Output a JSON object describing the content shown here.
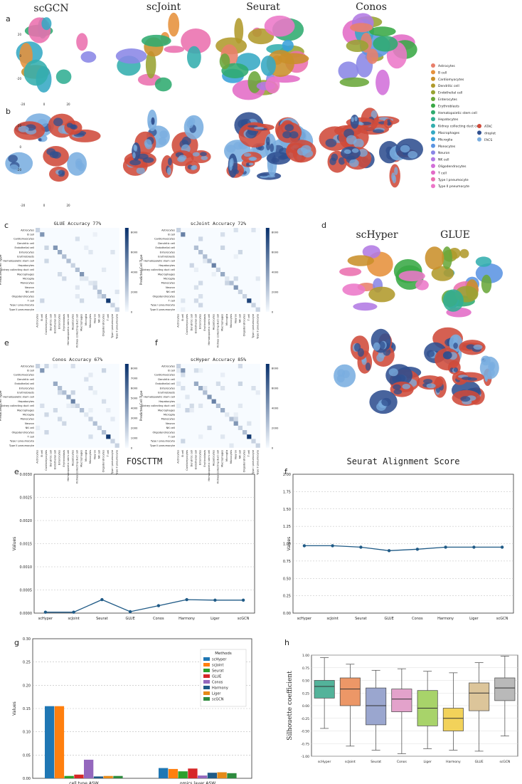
{
  "panel_letters": {
    "a": "a",
    "b": "b",
    "c": "c",
    "d": "d",
    "e": "e",
    "f": "f",
    "e2": "e",
    "f2": "f",
    "g": "g",
    "h": "h"
  },
  "row_titles": [
    "scGCN",
    "scJoint",
    "Seurat",
    "Conos"
  ],
  "d_titles": [
    "scHyper",
    "GLUE"
  ],
  "umap_ticks": {
    "y": [
      "20",
      "0",
      "-20"
    ],
    "x": [
      "-20",
      "0",
      "20"
    ]
  },
  "cell_types": [
    "Astrocytes",
    "B cell",
    "Cardiomyocytes",
    "Dendritic cell",
    "Endothelial cell",
    "Enterocytes",
    "Erythroblasts",
    "Hematopoietic stem cell",
    "Hepatocytes",
    "Kidney collecting duct cell",
    "Macrophages",
    "Microglia",
    "Monocytes",
    "Neuron",
    "NK cell",
    "Oligodendrocytes",
    "T cell",
    "Type I pneumocyte",
    "Type II pneumocyte"
  ],
  "cell_type_colors": [
    "#e87f6b",
    "#e6913b",
    "#c98f2a",
    "#b09a2b",
    "#98a332",
    "#6aa73a",
    "#39a845",
    "#2fab6f",
    "#31ae93",
    "#33aeae",
    "#35a9c4",
    "#39a0d9",
    "#5b94e2",
    "#8a86e6",
    "#b27ae4",
    "#d26fd9",
    "#e26bc6",
    "#ea6fae",
    "#ec77c8"
  ],
  "omics": [
    "ATAC",
    "droplet",
    "FACS"
  ],
  "omics_colors": [
    "#cf4a3a",
    "#2f4f8f",
    "#7aaee0"
  ],
  "confusion": [
    {
      "title": "GLUE Accuracy 77%",
      "ylabel": "Predicted Cell Type",
      "cbar_ticks": [
        "8000",
        "6000",
        "4000",
        "2000",
        "0"
      ]
    },
    {
      "title": "scJoint Accuracy 72%",
      "ylabel": "Predicted Cell Type",
      "cbar_ticks": [
        "8000",
        "6000",
        "4000",
        "2000",
        "0"
      ]
    },
    {
      "title": "Conos Accuracy 67%",
      "ylabel": "Predicted Cell Type",
      "cbar_ticks": [
        "8000",
        "7000",
        "6000",
        "5000",
        "4000",
        "3000",
        "2000",
        "1000",
        "0"
      ]
    },
    {
      "title": "scHyper Accuracy 85%",
      "ylabel": "Predicted Cell Type",
      "cbar_ticks": [
        "8000",
        "6000",
        "4000",
        "2000",
        "0"
      ]
    }
  ],
  "chart_data": [
    {
      "type": "line",
      "title": "FOSCTTM",
      "ylabel": "Values",
      "categories": [
        "scHyper",
        "scJoint",
        "Seurat",
        "GLUE",
        "Conos",
        "Harmony",
        "Liger",
        "scGCN"
      ],
      "values": [
        2e-05,
        2e-05,
        0.00029,
        3e-05,
        0.00016,
        0.00029,
        0.00028,
        0.00028
      ],
      "ylim": [
        0,
        0.003
      ],
      "yticks": [
        "0.0000",
        "0.0005",
        "0.0010",
        "0.0015",
        "0.0020",
        "0.0025",
        "0.0030"
      ],
      "color": "#1f5a86"
    },
    {
      "type": "line",
      "title": "Seurat Alignment Score",
      "ylabel": "Values",
      "categories": [
        "scHyper",
        "scJoint",
        "Seurat",
        "GLUE",
        "Conos",
        "Harmony",
        "Liger",
        "scGCN"
      ],
      "values": [
        0.97,
        0.97,
        0.95,
        0.9,
        0.92,
        0.95,
        0.95,
        0.95
      ],
      "ylim": [
        0,
        2.0
      ],
      "yticks": [
        "0.00",
        "0.25",
        "0.50",
        "0.75",
        "1.00",
        "1.25",
        "1.50",
        "1.75",
        "2.00"
      ],
      "color": "#1f5a86"
    },
    {
      "type": "bar",
      "ylabel": "Values",
      "legend_title": "Methods",
      "categories": [
        "cell type ASW",
        "omics layer ASW"
      ],
      "ylim": [
        0,
        0.3
      ],
      "yticks": [
        "0.00",
        "0.05",
        "0.10",
        "0.15",
        "0.20",
        "0.25",
        "0.30"
      ],
      "series": [
        {
          "name": "scHyper",
          "values": [
            0.155,
            0.022
          ],
          "color": "#1f77b4"
        },
        {
          "name": "scJoint",
          "values": [
            0.155,
            0.02
          ],
          "color": "#ff7f0e"
        },
        {
          "name": "Seurat",
          "values": [
            0.005,
            0.015
          ],
          "color": "#2ca02c"
        },
        {
          "name": "GLUE",
          "values": [
            0.008,
            0.021
          ],
          "color": "#d62728"
        },
        {
          "name": "Conos",
          "values": [
            0.04,
            0.006
          ],
          "color": "#9467bd"
        },
        {
          "name": "Harmony",
          "values": [
            0.004,
            0.012
          ],
          "color": "#1f5a86"
        },
        {
          "name": "Liger",
          "values": [
            0.005,
            0.013
          ],
          "color": "#e58a18"
        },
        {
          "name": "scGCN",
          "values": [
            0.005,
            0.011
          ],
          "color": "#2e8b3e"
        }
      ]
    },
    {
      "type": "box",
      "ylabel": "Silhouette coefficient",
      "categories": [
        "scHyper",
        "scJoint",
        "Seurat",
        "Conos",
        "Liger",
        "Harmony",
        "GLUE",
        "scGCN"
      ],
      "ylim": [
        -1,
        1
      ],
      "yticks": [
        "1.00",
        "0.75",
        "0.50",
        "0.25",
        "0.00",
        "-0.25",
        "-0.50",
        "-0.75",
        "-1.00"
      ],
      "boxes": [
        {
          "q1": 0.15,
          "median": 0.38,
          "q3": 0.5,
          "low": -0.45,
          "high": 0.95,
          "color": "#53b39a"
        },
        {
          "q1": 0.0,
          "median": 0.33,
          "q3": 0.55,
          "low": -0.8,
          "high": 0.82,
          "color": "#ec9767"
        },
        {
          "q1": -0.38,
          "median": 0.0,
          "q3": 0.35,
          "low": -0.88,
          "high": 0.7,
          "color": "#9aa6cf"
        },
        {
          "q1": -0.12,
          "median": 0.13,
          "q3": 0.33,
          "low": -0.95,
          "high": 0.73,
          "color": "#e3a2cb"
        },
        {
          "q1": -0.4,
          "median": -0.05,
          "q3": 0.3,
          "low": -0.85,
          "high": 0.68,
          "color": "#a8d36a"
        },
        {
          "q1": -0.5,
          "median": -0.25,
          "q3": -0.05,
          "low": -0.88,
          "high": 0.65,
          "color": "#f2d25a"
        },
        {
          "q1": -0.1,
          "median": 0.25,
          "q3": 0.45,
          "low": -0.9,
          "high": 0.85,
          "color": "#dcc59a"
        },
        {
          "q1": 0.1,
          "median": 0.35,
          "q3": 0.55,
          "low": -0.6,
          "high": 0.98,
          "color": "#b9b9b9"
        }
      ]
    }
  ]
}
